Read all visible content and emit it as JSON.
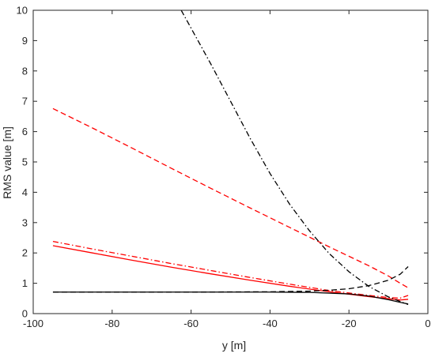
{
  "chart_data": {
    "type": "line",
    "title": "",
    "xlabel": "y [m]",
    "ylabel": "RMS value [m]",
    "xlim": [
      -100,
      0
    ],
    "ylim": [
      0,
      10
    ],
    "xticks": [
      -100,
      -80,
      -60,
      -40,
      -20,
      0
    ],
    "yticks": [
      0,
      1,
      2,
      3,
      4,
      5,
      6,
      7,
      8,
      9,
      10
    ],
    "xtick_labels": [
      "-100",
      "-80",
      "-60",
      "-40",
      "-20",
      "0"
    ],
    "ytick_labels": [
      "0",
      "1",
      "2",
      "3",
      "4",
      "5",
      "6",
      "7",
      "8",
      "9",
      "10"
    ],
    "grid": false,
    "legend": "none",
    "series": [
      {
        "color": "#ff0000",
        "dash": "solid",
        "x": [
          -95,
          -85,
          -75,
          -65,
          -55,
          -45,
          -35,
          -25,
          -15,
          -10,
          -7,
          -5
        ],
        "y": [
          2.24,
          2.0,
          1.76,
          1.53,
          1.31,
          1.1,
          0.9,
          0.72,
          0.56,
          0.49,
          0.45,
          0.47
        ]
      },
      {
        "color": "#ff0000",
        "dash": "dashed",
        "x": [
          -95,
          -85,
          -75,
          -65,
          -55,
          -45,
          -35,
          -25,
          -15,
          -10,
          -7,
          -5
        ],
        "y": [
          6.76,
          6.12,
          5.46,
          4.79,
          4.13,
          3.48,
          2.84,
          2.2,
          1.58,
          1.24,
          1.0,
          0.85
        ]
      },
      {
        "color": "#ff0000",
        "dash": "dashdot",
        "x": [
          -95,
          -85,
          -75,
          -65,
          -55,
          -45,
          -35,
          -25,
          -15,
          -10,
          -7,
          -5
        ],
        "y": [
          2.38,
          2.13,
          1.89,
          1.65,
          1.42,
          1.19,
          0.97,
          0.76,
          0.6,
          0.53,
          0.51,
          0.6
        ]
      },
      {
        "color": "#000000",
        "dash": "solid",
        "x": [
          -95,
          -80,
          -60,
          -40,
          -30,
          -20,
          -15,
          -10,
          -7,
          -5
        ],
        "y": [
          0.71,
          0.71,
          0.71,
          0.71,
          0.7,
          0.65,
          0.58,
          0.46,
          0.37,
          0.32
        ]
      },
      {
        "color": "#000000",
        "dash": "dashed",
        "x": [
          -95,
          -80,
          -60,
          -40,
          -30,
          -25,
          -20,
          -15,
          -10,
          -7,
          -5
        ],
        "y": [
          0.71,
          0.71,
          0.71,
          0.72,
          0.74,
          0.77,
          0.82,
          0.92,
          1.1,
          1.3,
          1.55
        ]
      },
      {
        "color": "#000000",
        "dash": "dashdot",
        "x": [
          -62.5,
          -55,
          -50,
          -45,
          -40,
          -35,
          -30,
          -25,
          -20,
          -15,
          -10,
          -5
        ],
        "y": [
          10.0,
          8.23,
          7.0,
          5.77,
          4.62,
          3.6,
          2.73,
          1.98,
          1.38,
          0.9,
          0.55,
          0.3
        ]
      }
    ]
  }
}
